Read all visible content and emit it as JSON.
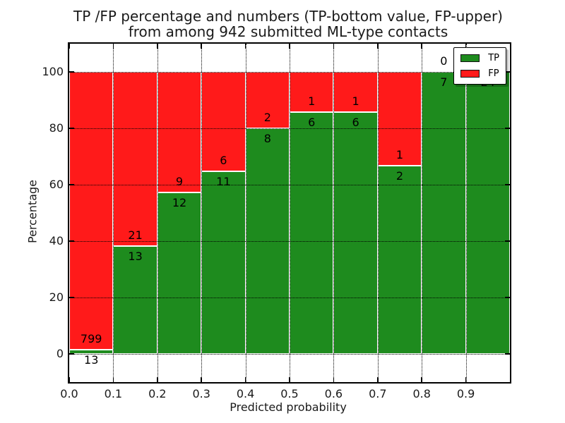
{
  "title": {
    "line1": "TP /FP percentage and numbers (TP-bottom value, FP-upper)",
    "line2": "from among 942 submitted ML-type contacts"
  },
  "x_axis": {
    "label": "Predicted probability",
    "tick_labels": [
      "0.0",
      "0.1",
      "0.2",
      "0.3",
      "0.4",
      "0.5",
      "0.6",
      "0.7",
      "0.8",
      "0.9"
    ],
    "tick_values": [
      0.0,
      0.1,
      0.2,
      0.3,
      0.4,
      0.5,
      0.6,
      0.7,
      0.8,
      0.9
    ]
  },
  "y_axis": {
    "label": "Percentage",
    "tick_labels": [
      "0",
      "20",
      "40",
      "60",
      "80",
      "100"
    ],
    "tick_values": [
      0,
      20,
      40,
      60,
      80,
      100
    ]
  },
  "legend": {
    "position": "upper right",
    "items": [
      {
        "label": "TP",
        "color": "#1e8b1e"
      },
      {
        "label": "FP",
        "color": "#ff1a1a"
      }
    ]
  },
  "colors": {
    "tp_green": "#1e8b1e",
    "fp_red": "#ff1a1a",
    "bar_edge": "#ffffff",
    "grid": "#000000",
    "text": "#000000"
  },
  "chart_data": {
    "type": "bar",
    "stacked": true,
    "orientation": "vertical",
    "title": "TP /FP percentage and numbers (TP-bottom value, FP-upper) from among 942 submitted ML-type contacts",
    "xlabel": "Predicted probability",
    "ylabel": "Percentage",
    "total_contacts": 942,
    "bin_edges": [
      0.0,
      0.1,
      0.2,
      0.3,
      0.4,
      0.5,
      0.6,
      0.7,
      0.8,
      0.9,
      1.0
    ],
    "bins": [
      "0.0-0.1",
      "0.1-0.2",
      "0.2-0.3",
      "0.3-0.4",
      "0.4-0.5",
      "0.5-0.6",
      "0.6-0.7",
      "0.7-0.8",
      "0.8-0.9",
      "0.9-1.0"
    ],
    "series": [
      {
        "name": "TP",
        "position": "bottom",
        "color": "#1e8b1e",
        "counts": [
          13,
          13,
          12,
          11,
          8,
          6,
          6,
          2,
          7,
          24
        ],
        "percent": [
          1.6,
          38.24,
          57.14,
          64.71,
          80.0,
          85.71,
          85.71,
          66.67,
          100.0,
          100.0
        ]
      },
      {
        "name": "FP",
        "position": "top",
        "color": "#ff1a1a",
        "counts": [
          799,
          21,
          9,
          6,
          2,
          1,
          1,
          1,
          0,
          0
        ],
        "percent": [
          98.4,
          61.76,
          42.86,
          35.29,
          20.0,
          14.29,
          14.29,
          33.33,
          0.0,
          0.0
        ]
      }
    ],
    "ylim": [
      -10,
      110
    ],
    "xlim": [
      0,
      1
    ],
    "grid": true,
    "grid_style": "dotted",
    "legend_position": "upper right"
  }
}
